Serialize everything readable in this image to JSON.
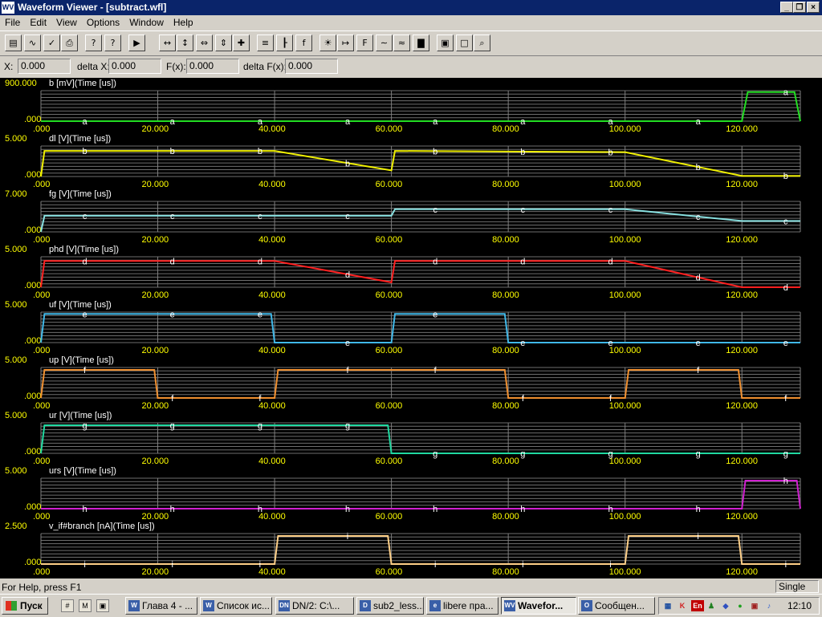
{
  "window": {
    "title": "Waveform Viewer - [subtract.wfl]",
    "icon": "WV"
  },
  "menu": [
    "File",
    "Edit",
    "View",
    "Options",
    "Window",
    "Help"
  ],
  "toolbar_icons": [
    "open-icon",
    "wave-icon",
    "check-icon",
    "print-icon",
    "help-icon",
    "context-help-icon",
    "run-icon",
    "zoom-fit-x-icon",
    "zoom-fit-y-icon",
    "zoom-in-x-icon",
    "zoom-in-y-icon",
    "pan-icon",
    "list-icon",
    "cursor-icon",
    "fx-icon",
    "bulb-icon",
    "measure-icon",
    "fx-measure-icon",
    "signal-icon",
    "signal2-icon",
    "bar-icon",
    "export-icon",
    "page-icon",
    "zoom-icon"
  ],
  "toolbar_glyphs": {
    "open-icon": "▤",
    "wave-icon": "∿",
    "check-icon": "✓",
    "print-icon": "⎙",
    "help-icon": "?",
    "context-help-icon": "?",
    "run-icon": "▶",
    "zoom-fit-x-icon": "↔",
    "zoom-fit-y-icon": "↕",
    "zoom-in-x-icon": "⇔",
    "zoom-in-y-icon": "⇕",
    "pan-icon": "✚",
    "list-icon": "≡",
    "cursor-icon": "┠",
    "fx-icon": "f",
    "bulb-icon": "☀",
    "measure-icon": "↦",
    "fx-measure-icon": "F",
    "signal-icon": "∼",
    "signal2-icon": "≈",
    "bar-icon": "▇",
    "export-icon": "▣",
    "page-icon": "□",
    "zoom-icon": "⌕"
  },
  "coords": {
    "x_label": "X:",
    "x_value": "0.000",
    "dx_label": "delta X:",
    "dx_value": "0.000",
    "fx_label": "F(x):",
    "fx_value": "0.000",
    "dfx_label": "delta F(x):",
    "dfx_value": "0.000"
  },
  "status": {
    "message": "For Help, press F1",
    "mode": "Single"
  },
  "taskbar": {
    "start": "Пуск",
    "quicklaunch": [
      "desktop-icon",
      "mail-icon",
      "media-icon"
    ],
    "tasks": [
      {
        "icon": "W",
        "label": "Глава 4 - ..."
      },
      {
        "icon": "W",
        "label": "Список ис..."
      },
      {
        "icon": "DN",
        "label": "DN/2: C:\\..."
      },
      {
        "icon": "D",
        "label": "sub2_less..."
      },
      {
        "icon": "e",
        "label": "libere пра..."
      },
      {
        "icon": "WV",
        "label": "Wavefor...",
        "active": true
      },
      {
        "icon": "O",
        "label": "Сообщен..."
      }
    ],
    "tray_icons": [
      "network-icon",
      "antivirus-icon",
      "language-icon",
      "user-icon",
      "shield-icon",
      "globe-icon",
      "app-icon",
      "speaker-icon"
    ],
    "lang": "En",
    "clock": "12:10"
  },
  "chart_data": {
    "type": "line",
    "x_unit": "us",
    "xlim": [
      0,
      130
    ],
    "x_ticks": [
      ".000",
      "20.000",
      "40.000",
      "60.000",
      "80.000",
      "100.000",
      "120.000"
    ],
    "grid": true,
    "plots": [
      {
        "label": "b [mV](Time [us])",
        "marker": "a",
        "color": "#22dd22",
        "ymax_label": "900.000",
        "ymin_label": ".000",
        "ylim": [
          0,
          900
        ],
        "x": [
          0,
          120,
          121,
          129,
          130
        ],
        "y": [
          0,
          0,
          860,
          860,
          0
        ]
      },
      {
        "label": "dl [V](Time [us])",
        "marker": "b",
        "color": "#f0f000",
        "ymax_label": "5.000",
        "ymin_label": ".000",
        "ylim": [
          0,
          5
        ],
        "x": [
          0,
          0.6,
          40,
          60,
          60.6,
          100,
          120,
          130
        ],
        "y": [
          0,
          4.2,
          4.2,
          1.0,
          4.2,
          4.0,
          0.1,
          0.1
        ]
      },
      {
        "label": "fg [V](Time [us])",
        "marker": "c",
        "color": "#88e0e0",
        "ymax_label": "7.000",
        "ymin_label": ".000",
        "ylim": [
          0,
          7
        ],
        "x": [
          0,
          0.6,
          60,
          60.6,
          100,
          120,
          130
        ],
        "y": [
          0,
          3.7,
          3.7,
          5.2,
          5.2,
          2.5,
          2.5
        ]
      },
      {
        "label": "phd [V](Time [us])",
        "marker": "d",
        "color": "#ff2020",
        "ymax_label": "5.000",
        "ymin_label": ".000",
        "ylim": [
          0,
          5
        ],
        "x": [
          0,
          0.6,
          40,
          60,
          60.6,
          100,
          120,
          130
        ],
        "y": [
          0,
          4.3,
          4.3,
          0.8,
          4.3,
          4.3,
          0,
          0
        ]
      },
      {
        "label": "uf [V](Time [us])",
        "marker": "e",
        "color": "#40b8e8",
        "ymax_label": "5.000",
        "ymin_label": ".000",
        "ylim": [
          0,
          5
        ],
        "x": [
          0,
          0.6,
          39.4,
          40,
          60,
          60.6,
          79.4,
          80,
          130
        ],
        "y": [
          0,
          4.7,
          4.7,
          0,
          0,
          4.7,
          4.7,
          0,
          0
        ]
      },
      {
        "label": "up [V](Time [us])",
        "marker": "f",
        "color": "#f09030",
        "ymax_label": "5.000",
        "ymin_label": ".000",
        "ylim": [
          0,
          5
        ],
        "x": [
          0,
          0.6,
          19.4,
          20,
          40,
          40.6,
          79.4,
          80,
          100,
          100.6,
          119.4,
          120,
          130
        ],
        "y": [
          0,
          4.6,
          4.6,
          0,
          0,
          4.6,
          4.6,
          0,
          0,
          4.6,
          4.6,
          0,
          0
        ]
      },
      {
        "label": "ur [V](Time [us])",
        "marker": "g",
        "color": "#20d8a0",
        "ymax_label": "5.000",
        "ymin_label": ".000",
        "ylim": [
          0,
          5
        ],
        "x": [
          0,
          0.6,
          59.4,
          60,
          130
        ],
        "y": [
          0,
          4.6,
          4.6,
          0,
          0
        ]
      },
      {
        "label": "urs [V](Time [us])",
        "marker": "h",
        "color": "#d020d0",
        "ymax_label": "5.000",
        "ymin_label": ".000",
        "ylim": [
          0,
          5
        ],
        "x": [
          0,
          120,
          120.6,
          129.4,
          130
        ],
        "y": [
          0,
          0,
          4.6,
          4.6,
          0
        ]
      },
      {
        "label": "v_if#branch [nA](Time [us])",
        "marker": "i",
        "color": "#ffd088",
        "ymax_label": "2.500",
        "ymin_label": ".000",
        "ylim": [
          0,
          2.5
        ],
        "x": [
          0,
          40,
          40.6,
          59.4,
          60,
          100,
          100.6,
          119.4,
          120,
          130
        ],
        "y": [
          0,
          0,
          2.3,
          2.3,
          0,
          0,
          2.3,
          2.3,
          0,
          0
        ]
      }
    ]
  }
}
